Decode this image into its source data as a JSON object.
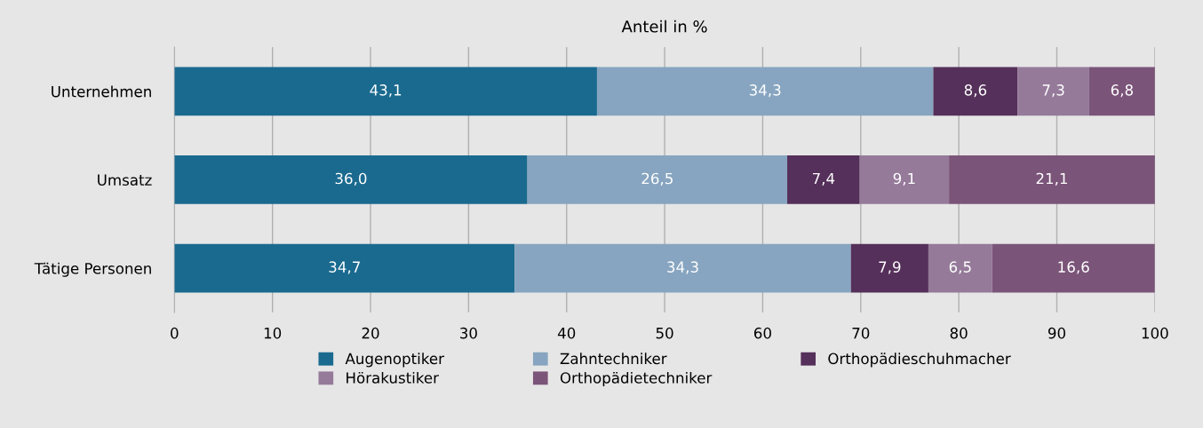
{
  "chart_data": {
    "type": "bar",
    "orientation": "horizontal",
    "stacked": true,
    "title": "Anteil in %",
    "categories": [
      "Unternehmen",
      "Umsatz",
      "Tätige Personen"
    ],
    "series": [
      {
        "name": "Augenoptiker",
        "color": "#1a6a8f",
        "values": [
          43.1,
          36.0,
          34.7
        ],
        "value_labels": [
          "43,1",
          "36,0",
          "34,7"
        ]
      },
      {
        "name": "Zahntechniker",
        "color": "#87a5c0",
        "values": [
          34.3,
          26.5,
          34.3
        ],
        "value_labels": [
          "34,3",
          "26,5",
          "34,3"
        ]
      },
      {
        "name": "Orthopädieschuhmacher",
        "color": "#55305a",
        "values": [
          8.6,
          7.4,
          7.9
        ],
        "value_labels": [
          "8,6",
          "7,4",
          "7,9"
        ]
      },
      {
        "name": "Hörakustiker",
        "color": "#957a9a",
        "values": [
          7.3,
          9.1,
          6.5
        ],
        "value_labels": [
          "7,3",
          "9,1",
          "6,5"
        ]
      },
      {
        "name": "Orthopädietechniker",
        "color": "#7b5479",
        "values": [
          6.8,
          21.1,
          16.6
        ],
        "value_labels": [
          "6,8",
          "21,1",
          "16,6"
        ]
      }
    ],
    "xlim": [
      0,
      100
    ],
    "xticks": [
      0,
      10,
      20,
      30,
      40,
      50,
      60,
      70,
      80,
      90,
      100
    ],
    "grid": "x",
    "legend": "bottom"
  }
}
